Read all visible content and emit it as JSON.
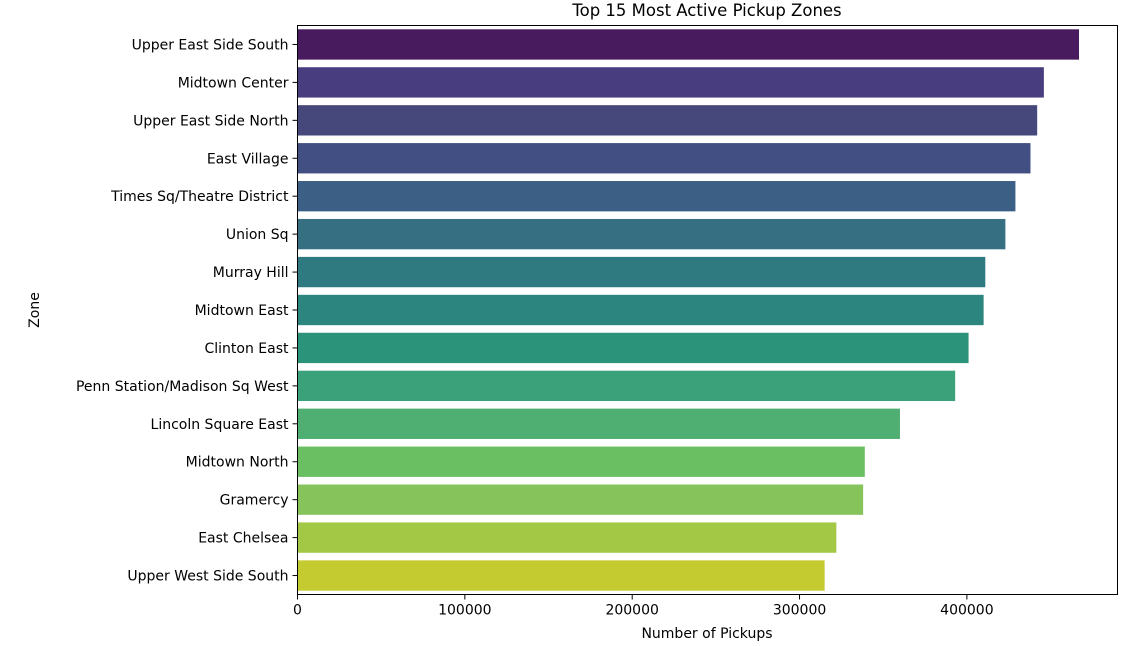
{
  "chart_data": {
    "type": "bar",
    "orientation": "horizontal",
    "title": "Top 15 Most Active Pickup Zones",
    "xlabel": "Number of Pickups",
    "ylabel": "Zone",
    "xlim": [
      0,
      490000
    ],
    "xticks": [
      0,
      100000,
      200000,
      300000,
      400000
    ],
    "xtick_labels": [
      "0",
      "100000",
      "200000",
      "300000",
      "400000"
    ],
    "grid": false,
    "categories": [
      "Upper East Side South",
      "Midtown Center",
      "Upper East Side North",
      "East Village",
      "Times Sq/Theatre District",
      "Union Sq",
      "Murray Hill",
      "Midtown East",
      "Clinton East",
      "Penn Station/Madison Sq West",
      "Lincoln Square East",
      "Midtown North",
      "Gramercy",
      "East Chelsea",
      "Upper West Side South"
    ],
    "values": [
      467000,
      446000,
      442000,
      438000,
      429000,
      423000,
      411000,
      410000,
      401000,
      393000,
      360000,
      339000,
      338000,
      322000,
      315000
    ],
    "colors": [
      "#481b5e",
      "#473d7f",
      "#46487c",
      "#424f82",
      "#3b5f85",
      "#366e82",
      "#2f7a80",
      "#2c857e",
      "#2c937b",
      "#3aa17a",
      "#4fae72",
      "#69bf62",
      "#86c35a",
      "#a3c846",
      "#c4cb30"
    ]
  }
}
